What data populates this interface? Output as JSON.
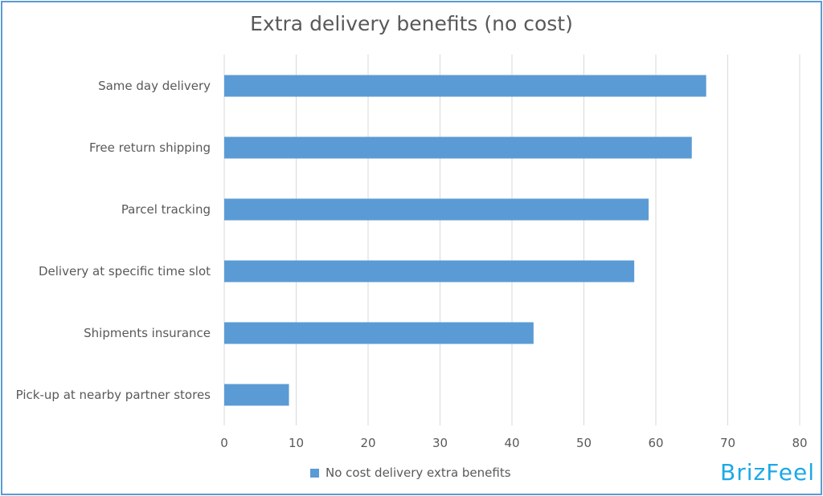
{
  "chart_data": {
    "type": "bar",
    "orientation": "horizontal",
    "title": "Extra delivery benefits (no cost)",
    "categories": [
      "Same day delivery",
      "Free return shipping",
      "Parcel tracking",
      "Delivery at specific time slot",
      "Shipments insurance",
      "Pick-up at nearby partner stores"
    ],
    "series": [
      {
        "name": "No cost delivery extra benefits",
        "values": [
          67,
          65,
          59,
          57,
          43,
          9
        ]
      }
    ],
    "xlim": [
      0,
      80
    ],
    "xticks": [
      0,
      10,
      20,
      30,
      40,
      50,
      60,
      70,
      80
    ],
    "grid": "vertical",
    "legend_position": "bottom",
    "bar_color": "#5b9bd5"
  },
  "branding": {
    "text": "BrizFeel",
    "color": "#1ca9e6"
  }
}
